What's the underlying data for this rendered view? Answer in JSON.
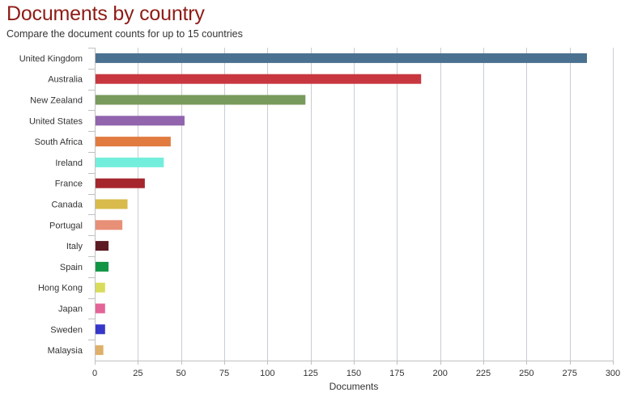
{
  "header": {
    "title": "Documents by country",
    "subtitle": "Compare the document counts for up to 15 countries"
  },
  "chart_data": {
    "type": "bar",
    "orientation": "horizontal",
    "categories": [
      "United Kingdom",
      "Australia",
      "New Zealand",
      "United States",
      "South Africa",
      "Ireland",
      "France",
      "Canada",
      "Portugal",
      "Italy",
      "Spain",
      "Hong Kong",
      "Japan",
      "Sweden",
      "Malaysia"
    ],
    "values": [
      285,
      189,
      122,
      52,
      44,
      40,
      29,
      19,
      16,
      8,
      8,
      6,
      6,
      6,
      5
    ],
    "colors": [
      "#4a7190",
      "#c8373f",
      "#789a5c",
      "#9164ad",
      "#e17b40",
      "#74eedc",
      "#a5262d",
      "#d8bb4c",
      "#e88f77",
      "#5c1b23",
      "#129445",
      "#d9dc5a",
      "#e36498",
      "#3636c8",
      "#dfb06a"
    ],
    "xlabel": "Documents",
    "xlim": [
      0,
      300
    ],
    "xticks": [
      0,
      25,
      50,
      75,
      100,
      125,
      150,
      175,
      200,
      225,
      250,
      275,
      300
    ],
    "grid": true,
    "legend": "none"
  }
}
